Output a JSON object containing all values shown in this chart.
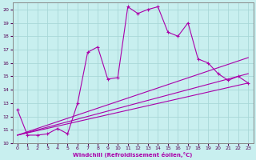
{
  "xlabel": "Windchill (Refroidissement éolien,°C)",
  "bg_color": "#c8efef",
  "grid_color": "#a8d8d8",
  "line_color": "#aa00aa",
  "spine_color": "#888888",
  "xlim": [
    -0.5,
    23.5
  ],
  "ylim": [
    10,
    20.5
  ],
  "xticks": [
    0,
    1,
    2,
    3,
    4,
    5,
    6,
    7,
    8,
    9,
    10,
    11,
    12,
    13,
    14,
    15,
    16,
    17,
    18,
    19,
    20,
    21,
    22,
    23
  ],
  "yticks": [
    10,
    11,
    12,
    13,
    14,
    15,
    16,
    17,
    18,
    19,
    20
  ],
  "series1_x": [
    0,
    1,
    2,
    3,
    4,
    5,
    6,
    7,
    8,
    9,
    10,
    11,
    12,
    13,
    14,
    15,
    16,
    17,
    18,
    19,
    20,
    21,
    22,
    23
  ],
  "series1_y": [
    12.5,
    10.6,
    10.6,
    10.7,
    11.1,
    10.7,
    13.0,
    16.8,
    17.2,
    14.8,
    14.9,
    20.2,
    19.7,
    20.0,
    20.2,
    18.3,
    18.0,
    19.0,
    16.3,
    16.0,
    15.2,
    14.7,
    15.0,
    14.5
  ],
  "line2_x": [
    0,
    23
  ],
  "line2_y": [
    10.6,
    16.4
  ],
  "line3_x": [
    0,
    23
  ],
  "line3_y": [
    10.6,
    15.2
  ],
  "line4_x": [
    0,
    23
  ],
  "line4_y": [
    10.6,
    14.5
  ]
}
